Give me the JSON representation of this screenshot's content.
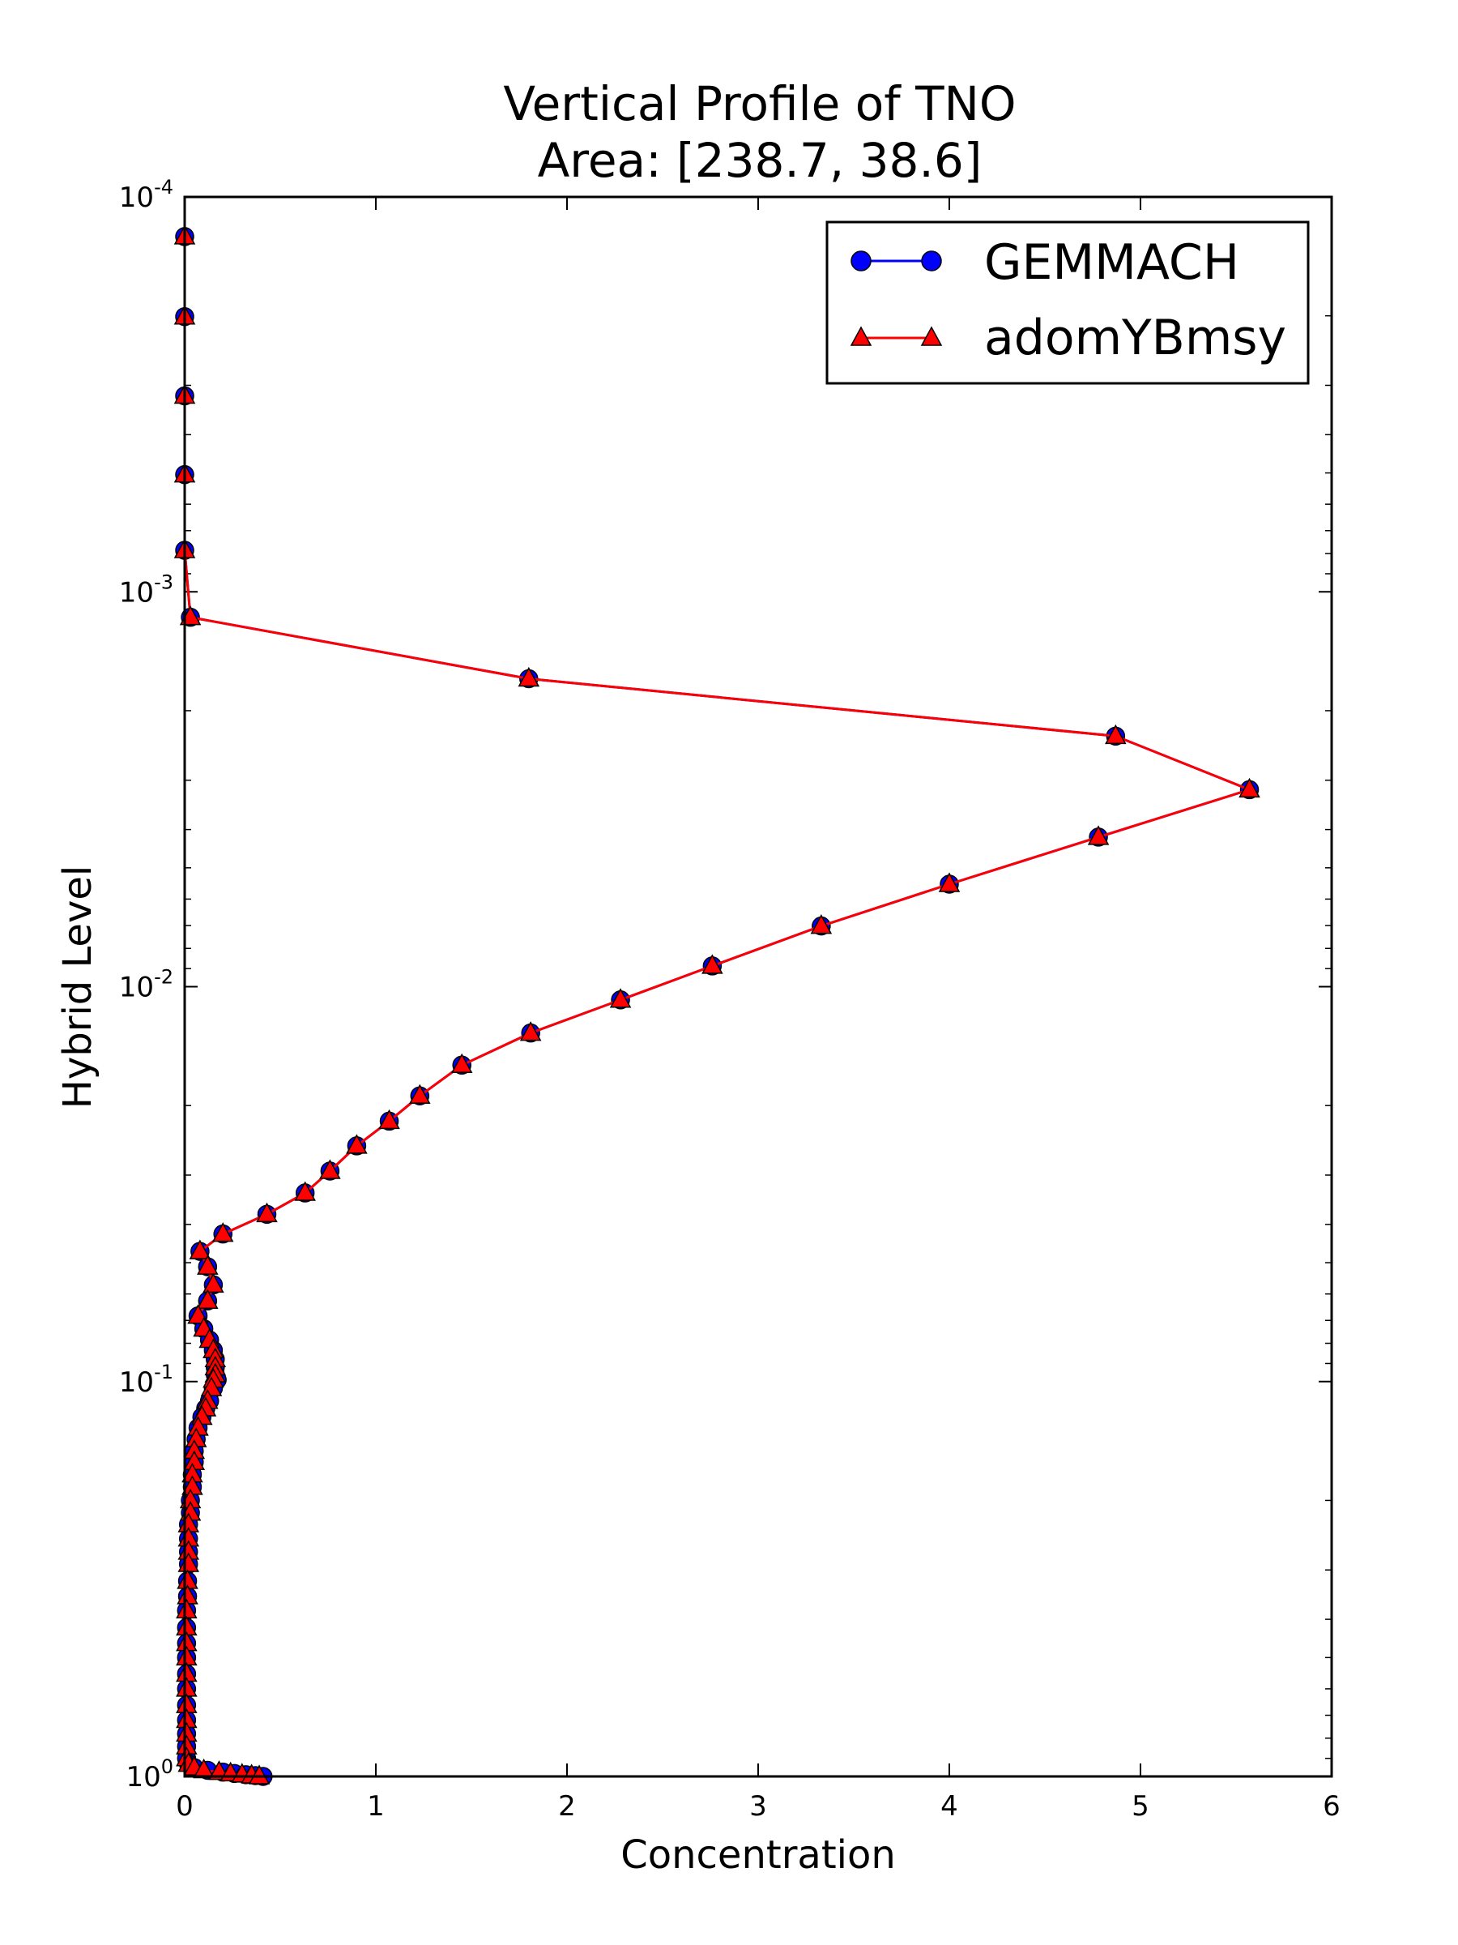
{
  "chart_data": {
    "type": "line",
    "title": "Vertical Profile of TNO",
    "subtitle": "Area: [238.7, 38.6]",
    "xlabel": "Concentration",
    "ylabel": "Hybrid Level",
    "xlim": [
      0,
      6
    ],
    "ylim": [
      1.0,
      0.0001
    ],
    "yscale": "log",
    "y_inverted": true,
    "x_ticks": [
      "0",
      "1",
      "2",
      "3",
      "4",
      "5",
      "6"
    ],
    "y_ticks": [
      {
        "base": "10",
        "exp": "-4",
        "value": 0.0001
      },
      {
        "base": "10",
        "exp": "-3",
        "value": 0.001
      },
      {
        "base": "10",
        "exp": "-2",
        "value": 0.01
      },
      {
        "base": "10",
        "exp": "-1",
        "value": 0.1
      },
      {
        "base": "10",
        "exp": "0",
        "value": 1
      }
    ],
    "grid": false,
    "legend_position": "top-right",
    "series": [
      {
        "name": "GEMMACH",
        "color": "#0000ff",
        "marker": "circle",
        "points": [
          [
            0.0,
            0.000126
          ],
          [
            0.0,
            0.000201
          ],
          [
            0.0,
            0.000319
          ],
          [
            0.0,
            0.000505
          ],
          [
            0.0,
            0.000785
          ],
          [
            0.03,
            0.00116
          ],
          [
            1.8,
            0.00166
          ],
          [
            4.87,
            0.00232
          ],
          [
            5.57,
            0.00317
          ],
          [
            4.78,
            0.00418
          ],
          [
            4.0,
            0.0055
          ],
          [
            3.33,
            0.00702
          ],
          [
            2.76,
            0.00886
          ],
          [
            2.28,
            0.0108
          ],
          [
            1.81,
            0.0131
          ],
          [
            1.45,
            0.0158
          ],
          [
            1.23,
            0.0189
          ],
          [
            1.07,
            0.0219
          ],
          [
            0.9,
            0.0253
          ],
          [
            0.76,
            0.0293
          ],
          [
            0.63,
            0.0333
          ],
          [
            0.43,
            0.0377
          ],
          [
            0.2,
            0.0423
          ],
          [
            0.08,
            0.0468
          ],
          [
            0.12,
            0.0512
          ],
          [
            0.15,
            0.0569
          ],
          [
            0.12,
            0.0625
          ],
          [
            0.07,
            0.0682
          ],
          [
            0.1,
            0.0735
          ],
          [
            0.13,
            0.0785
          ],
          [
            0.15,
            0.0833
          ],
          [
            0.16,
            0.0878
          ],
          [
            0.16,
            0.0921
          ],
          [
            0.16,
            0.096
          ],
          [
            0.17,
            0.099
          ],
          [
            0.15,
            0.104
          ],
          [
            0.13,
            0.112
          ],
          [
            0.11,
            0.117
          ],
          [
            0.09,
            0.123
          ],
          [
            0.07,
            0.131
          ],
          [
            0.06,
            0.14
          ],
          [
            0.05,
            0.15
          ],
          [
            0.05,
            0.16
          ],
          [
            0.04,
            0.172
          ],
          [
            0.04,
            0.185
          ],
          [
            0.03,
            0.2
          ],
          [
            0.03,
            0.215
          ],
          [
            0.02,
            0.23
          ],
          [
            0.02,
            0.25
          ],
          [
            0.02,
            0.27
          ],
          [
            0.02,
            0.29
          ],
          [
            0.015,
            0.32
          ],
          [
            0.015,
            0.35
          ],
          [
            0.01,
            0.38
          ],
          [
            0.01,
            0.42
          ],
          [
            0.01,
            0.46
          ],
          [
            0.01,
            0.5
          ],
          [
            0.01,
            0.55
          ],
          [
            0.01,
            0.6
          ],
          [
            0.01,
            0.66
          ],
          [
            0.01,
            0.72
          ],
          [
            0.01,
            0.78
          ],
          [
            0.01,
            0.84
          ],
          [
            0.01,
            0.9
          ],
          [
            0.02,
            0.93
          ],
          [
            0.05,
            0.95
          ],
          [
            0.12,
            0.965
          ],
          [
            0.2,
            0.975
          ],
          [
            0.26,
            0.983
          ],
          [
            0.32,
            0.99
          ],
          [
            0.37,
            0.995
          ],
          [
            0.41,
            1.0
          ]
        ]
      },
      {
        "name": "adomYBmsy",
        "color": "#ff0000",
        "marker": "triangle",
        "points": [
          [
            0.0,
            0.000126
          ],
          [
            0.0,
            0.000201
          ],
          [
            0.0,
            0.000319
          ],
          [
            0.0,
            0.000505
          ],
          [
            0.0,
            0.000785
          ],
          [
            0.03,
            0.00116
          ],
          [
            1.8,
            0.00166
          ],
          [
            4.87,
            0.00232
          ],
          [
            5.57,
            0.00317
          ],
          [
            4.78,
            0.00418
          ],
          [
            4.0,
            0.0055
          ],
          [
            3.33,
            0.00702
          ],
          [
            2.76,
            0.00886
          ],
          [
            2.28,
            0.0108
          ],
          [
            1.81,
            0.0131
          ],
          [
            1.45,
            0.0158
          ],
          [
            1.23,
            0.0189
          ],
          [
            1.07,
            0.0219
          ],
          [
            0.9,
            0.0253
          ],
          [
            0.76,
            0.0293
          ],
          [
            0.63,
            0.0333
          ],
          [
            0.43,
            0.0377
          ],
          [
            0.2,
            0.0423
          ],
          [
            0.08,
            0.0468
          ],
          [
            0.12,
            0.0512
          ],
          [
            0.15,
            0.0569
          ],
          [
            0.12,
            0.0625
          ],
          [
            0.07,
            0.0682
          ],
          [
            0.1,
            0.0735
          ],
          [
            0.13,
            0.0785
          ],
          [
            0.15,
            0.0833
          ],
          [
            0.16,
            0.0878
          ],
          [
            0.16,
            0.0921
          ],
          [
            0.16,
            0.096
          ],
          [
            0.15,
            0.099
          ],
          [
            0.14,
            0.104
          ],
          [
            0.12,
            0.112
          ],
          [
            0.11,
            0.117
          ],
          [
            0.09,
            0.123
          ],
          [
            0.07,
            0.131
          ],
          [
            0.06,
            0.14
          ],
          [
            0.05,
            0.15
          ],
          [
            0.05,
            0.16
          ],
          [
            0.04,
            0.172
          ],
          [
            0.04,
            0.185
          ],
          [
            0.03,
            0.2
          ],
          [
            0.03,
            0.215
          ],
          [
            0.02,
            0.23
          ],
          [
            0.02,
            0.25
          ],
          [
            0.02,
            0.27
          ],
          [
            0.02,
            0.29
          ],
          [
            0.015,
            0.32
          ],
          [
            0.015,
            0.35
          ],
          [
            0.01,
            0.38
          ],
          [
            0.01,
            0.42
          ],
          [
            0.01,
            0.46
          ],
          [
            0.01,
            0.5
          ],
          [
            0.01,
            0.55
          ],
          [
            0.01,
            0.6
          ],
          [
            0.01,
            0.66
          ],
          [
            0.01,
            0.72
          ],
          [
            0.01,
            0.78
          ],
          [
            0.01,
            0.84
          ],
          [
            0.01,
            0.9
          ],
          [
            0.02,
            0.93
          ],
          [
            0.05,
            0.95
          ],
          [
            0.1,
            0.965
          ],
          [
            0.18,
            0.975
          ],
          [
            0.24,
            0.983
          ],
          [
            0.3,
            0.99
          ],
          [
            0.35,
            0.995
          ],
          [
            0.39,
            1.0
          ]
        ]
      }
    ]
  }
}
